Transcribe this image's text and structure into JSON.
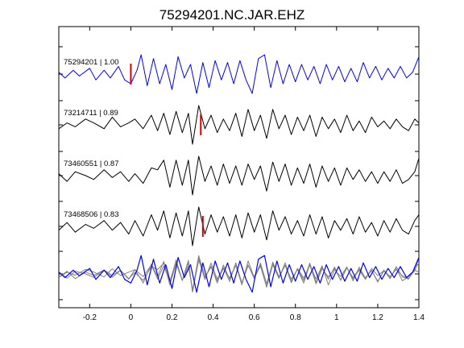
{
  "chart_data": {
    "type": "line",
    "title": "75294201.NC.JAR.EHZ",
    "xlabel": "",
    "ylabel": "",
    "xlim": [
      -0.35,
      1.4
    ],
    "x_ticks": [
      "-0.2",
      "0",
      "0.2",
      "0.4",
      "0.6",
      "0.8",
      "1",
      "1.2",
      "1.4"
    ],
    "x_tick_values": [
      -0.2,
      0,
      0.2,
      0.4,
      0.6,
      0.8,
      1.0,
      1.2,
      1.4
    ],
    "grid": false,
    "colors": {
      "primary": "#0000ff",
      "secondary": "#000000",
      "overlay": "#808080",
      "pick": "#dd0000"
    },
    "series": [
      {
        "name": "75294201",
        "label": "75294201 | 1.00",
        "correlation": 1.0,
        "color": "#0000ff",
        "pick_time": 0.0,
        "t": [
          -0.35,
          -0.32,
          -0.28,
          -0.25,
          -0.2,
          -0.17,
          -0.13,
          -0.1,
          -0.06,
          -0.03,
          0.0,
          0.03,
          0.05,
          0.08,
          0.11,
          0.14,
          0.17,
          0.2,
          0.23,
          0.26,
          0.29,
          0.32,
          0.35,
          0.38,
          0.41,
          0.44,
          0.47,
          0.5,
          0.53,
          0.56,
          0.59,
          0.62,
          0.65,
          0.68,
          0.71,
          0.74,
          0.77,
          0.8,
          0.83,
          0.86,
          0.89,
          0.92,
          0.95,
          0.98,
          1.01,
          1.04,
          1.07,
          1.1,
          1.13,
          1.16,
          1.19,
          1.22,
          1.25,
          1.28,
          1.31,
          1.34,
          1.37,
          1.4
        ],
        "v": [
          0.1,
          -0.2,
          0.2,
          -0.1,
          0.3,
          -0.3,
          0.2,
          -0.2,
          0.4,
          -0.3,
          -0.5,
          0.2,
          1.0,
          -0.6,
          0.8,
          -0.5,
          0.5,
          -0.8,
          0.9,
          -0.2,
          0.5,
          -1.0,
          0.6,
          -0.7,
          0.7,
          -0.3,
          0.6,
          -0.5,
          0.7,
          -0.3,
          -1.0,
          0.8,
          1.0,
          -0.7,
          0.7,
          -0.5,
          0.5,
          -0.4,
          0.5,
          -0.3,
          0.4,
          -0.5,
          0.5,
          -0.3,
          0.4,
          -0.4,
          0.3,
          -0.4,
          0.6,
          -0.2,
          0.4,
          -0.3,
          0.3,
          -0.2,
          0.4,
          -0.2,
          0.1,
          0.9
        ]
      },
      {
        "name": "73214711",
        "label": "73214711 | 0.89",
        "correlation": 0.89,
        "color": "#000000",
        "pick_time": 0.34,
        "t": [
          -0.35,
          -0.31,
          -0.27,
          -0.22,
          -0.18,
          -0.13,
          -0.09,
          -0.05,
          -0.01,
          0.02,
          0.06,
          0.1,
          0.13,
          0.16,
          0.19,
          0.22,
          0.25,
          0.28,
          0.3,
          0.33,
          0.36,
          0.39,
          0.42,
          0.45,
          0.48,
          0.51,
          0.54,
          0.57,
          0.6,
          0.63,
          0.66,
          0.69,
          0.72,
          0.75,
          0.78,
          0.81,
          0.84,
          0.87,
          0.9,
          0.93,
          0.96,
          0.99,
          1.02,
          1.05,
          1.08,
          1.11,
          1.14,
          1.17,
          1.2,
          1.23,
          1.26,
          1.29,
          1.32,
          1.35,
          1.38,
          1.4
        ],
        "v": [
          -0.2,
          0.1,
          -0.1,
          0.3,
          0.1,
          -0.2,
          0.4,
          -0.1,
          0.1,
          0.3,
          -0.2,
          0.5,
          -0.3,
          0.6,
          -0.5,
          0.7,
          -0.4,
          0.6,
          -1.0,
          1.0,
          -0.2,
          0.5,
          -0.4,
          0.3,
          -0.3,
          0.6,
          -0.6,
          0.8,
          -0.3,
          0.5,
          -0.7,
          0.8,
          -0.2,
          0.5,
          -0.5,
          0.4,
          -0.3,
          0.5,
          -0.6,
          0.4,
          -0.2,
          0.3,
          -0.4,
          0.5,
          -0.3,
          0.2,
          -0.4,
          0.4,
          -0.1,
          0.2,
          -0.2,
          0.3,
          -0.1,
          -0.3,
          0.3,
          0.1
        ]
      },
      {
        "name": "73460551",
        "label": "73460551 | 0.87",
        "correlation": 0.87,
        "color": "#000000",
        "pick_time": null,
        "t": [
          -0.35,
          -0.31,
          -0.27,
          -0.22,
          -0.18,
          -0.13,
          -0.09,
          -0.05,
          -0.01,
          0.02,
          0.06,
          0.1,
          0.13,
          0.16,
          0.19,
          0.22,
          0.25,
          0.28,
          0.3,
          0.33,
          0.36,
          0.39,
          0.42,
          0.45,
          0.48,
          0.51,
          0.54,
          0.57,
          0.6,
          0.63,
          0.66,
          0.69,
          0.72,
          0.75,
          0.78,
          0.81,
          0.84,
          0.87,
          0.9,
          0.93,
          0.96,
          0.99,
          1.02,
          1.05,
          1.08,
          1.11,
          1.14,
          1.17,
          1.2,
          1.23,
          1.26,
          1.29,
          1.32,
          1.35,
          1.38,
          1.4
        ],
        "v": [
          0.1,
          -0.3,
          0.2,
          0.0,
          -0.2,
          0.3,
          -0.1,
          0.2,
          -0.3,
          0.1,
          -0.4,
          0.4,
          0.3,
          0.8,
          -0.6,
          0.8,
          -0.5,
          0.8,
          -1.0,
          1.0,
          -0.3,
          0.5,
          -0.5,
          0.6,
          -0.4,
          0.5,
          -0.5,
          0.6,
          -0.2,
          0.5,
          -0.8,
          0.7,
          -0.3,
          0.6,
          -0.5,
          0.4,
          -0.4,
          0.6,
          -0.6,
          0.5,
          -0.3,
          0.4,
          -0.5,
          0.4,
          -0.2,
          0.3,
          -0.3,
          0.2,
          -0.4,
          0.2,
          -0.3,
          0.3,
          -0.4,
          -0.2,
          0.2,
          0.9
        ]
      },
      {
        "name": "73468506",
        "label": "73468506 | 0.83",
        "correlation": 0.83,
        "color": "#000000",
        "pick_time": 0.35,
        "t": [
          -0.35,
          -0.31,
          -0.27,
          -0.22,
          -0.18,
          -0.13,
          -0.09,
          -0.05,
          -0.01,
          0.02,
          0.06,
          0.1,
          0.13,
          0.16,
          0.19,
          0.22,
          0.25,
          0.28,
          0.3,
          0.33,
          0.36,
          0.39,
          0.42,
          0.45,
          0.48,
          0.51,
          0.54,
          0.57,
          0.6,
          0.63,
          0.66,
          0.69,
          0.72,
          0.75,
          0.78,
          0.81,
          0.84,
          0.87,
          0.9,
          0.93,
          0.96,
          0.99,
          1.02,
          1.05,
          1.08,
          1.11,
          1.14,
          1.17,
          1.2,
          1.23,
          1.26,
          1.29,
          1.32,
          1.35,
          1.38,
          1.4
        ],
        "v": [
          -0.2,
          0.2,
          -0.3,
          0.1,
          -0.1,
          0.3,
          -0.2,
          0.2,
          -0.4,
          0.3,
          -0.5,
          0.6,
          -0.2,
          0.8,
          -0.6,
          0.7,
          -0.5,
          0.8,
          -1.0,
          1.0,
          -0.4,
          0.6,
          -0.3,
          0.5,
          -0.5,
          0.6,
          -0.6,
          0.7,
          -0.3,
          0.6,
          -0.7,
          0.8,
          -0.2,
          0.5,
          -0.4,
          0.3,
          -0.5,
          0.6,
          -0.4,
          0.5,
          -0.6,
          0.3,
          -0.2,
          0.4,
          -0.4,
          0.5,
          -0.3,
          0.2,
          -0.5,
          0.3,
          -0.3,
          0.4,
          -0.2,
          -0.4,
          0.3,
          0.6
        ]
      }
    ]
  }
}
